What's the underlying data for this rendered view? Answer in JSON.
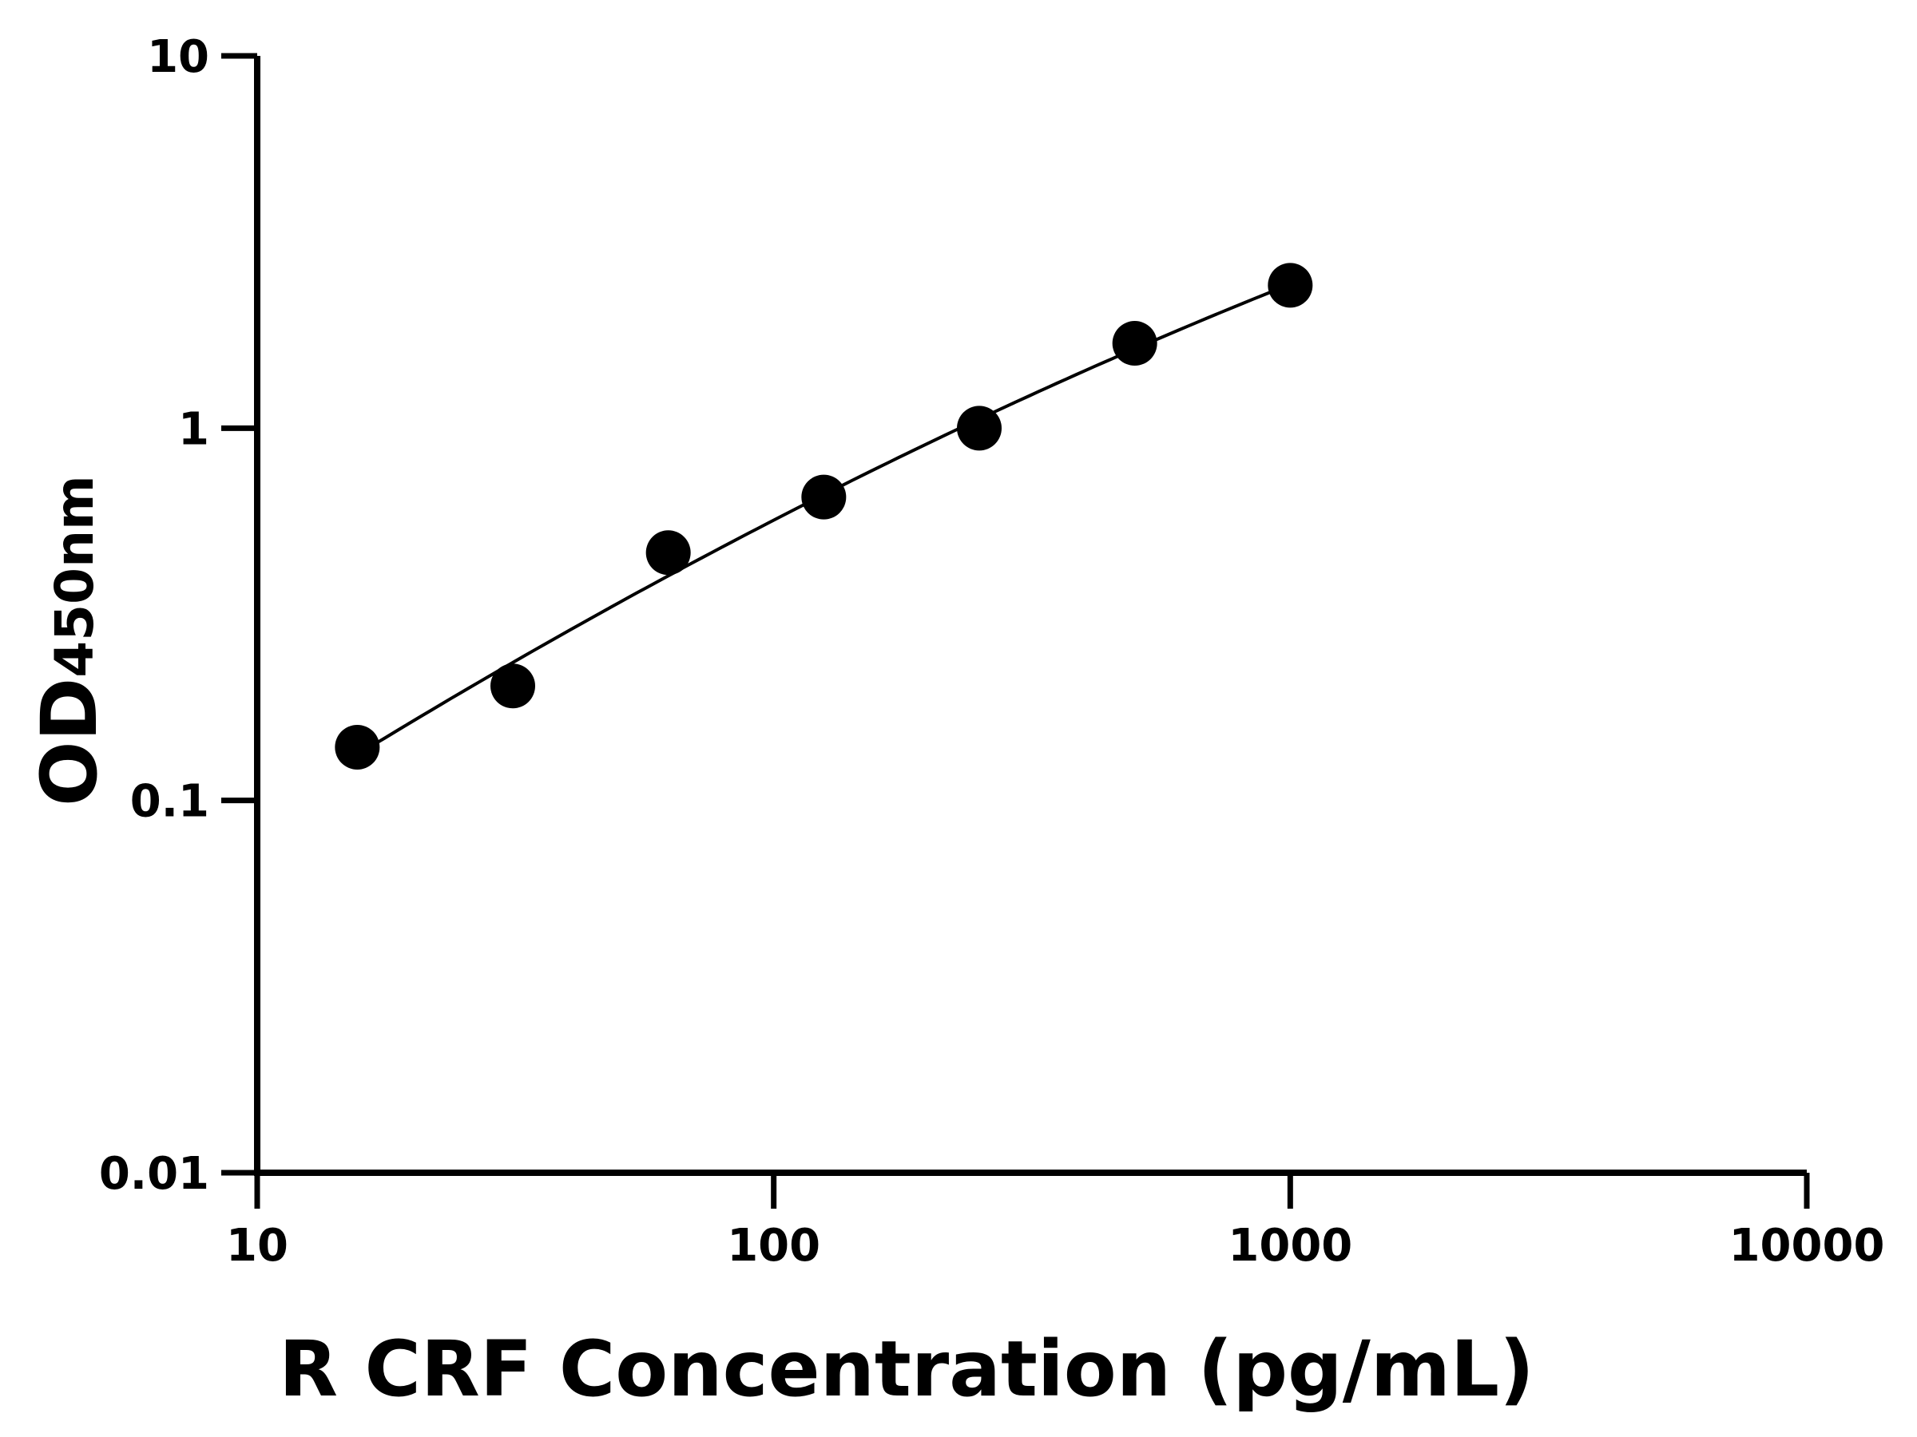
{
  "chart_data": {
    "type": "scatter",
    "xlabel": "R CRF Concentration (pg/mL)",
    "ylabel": "OD",
    "ylabel_subscript": "450nm",
    "xscale": "log",
    "yscale": "log",
    "xlim": [
      10,
      10000
    ],
    "ylim": [
      0.01,
      10
    ],
    "xticks": [
      10,
      100,
      1000,
      10000
    ],
    "xtick_labels": [
      "10",
      "100",
      "1000",
      "10000"
    ],
    "yticks": [
      0.01,
      0.1,
      1,
      10
    ],
    "ytick_labels": [
      "0.01",
      "0.1",
      "1",
      "10"
    ],
    "grid": false,
    "fit_curve": true,
    "series": [
      {
        "x": [
          15.625,
          31.25,
          62.5,
          125,
          250,
          500,
          1000
        ],
        "y": [
          0.139,
          0.203,
          0.463,
          0.653,
          1.0,
          1.69,
          2.42
        ]
      }
    ],
    "colors": {
      "marker": "#000000",
      "line": "#000000",
      "axis": "#000000"
    }
  }
}
